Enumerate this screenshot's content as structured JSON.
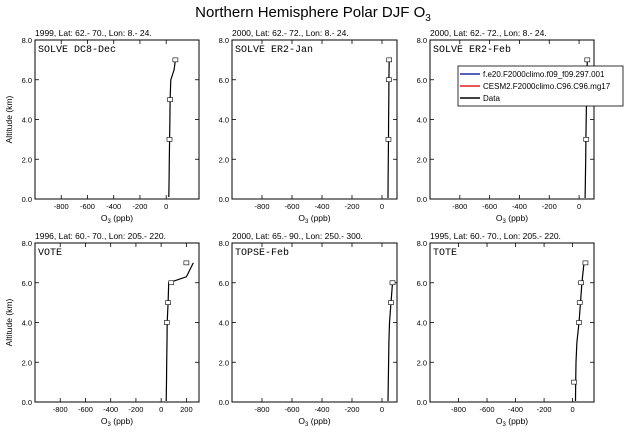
{
  "figure": {
    "title": "Northern Hemisphere Polar DJF O",
    "title_sub": "3"
  },
  "legend": {
    "placement": "top-right of third panel",
    "entries": [
      {
        "label": "f.e20.F2000climo.f09_f09.297.001",
        "color": "#1f2fa0"
      },
      {
        "label": "CESM2.F2000climo.C96.C96.mg17",
        "color": "#e02020"
      },
      {
        "label": "Data",
        "color": "#000000"
      }
    ]
  },
  "chart_data": [
    {
      "type": "line",
      "header": "1999, Lat: 62.- 70., Lon: 8.- 24.",
      "campaign": "SOLVE DC8-Dec",
      "xlabel": "O3 (ppb)",
      "ylabel": "Altitude (km)",
      "xlim": [
        -1000,
        250
      ],
      "ylim": [
        0,
        8
      ],
      "xticks": [
        -800,
        -600,
        -400,
        -200,
        0
      ],
      "yticks": [
        0.0,
        2.0,
        4.0,
        6.0,
        8.0
      ],
      "series": [
        {
          "name": "Data",
          "color": "#000000",
          "points": [
            [
              20,
              0.1
            ],
            [
              22,
              1.0
            ],
            [
              24,
              2.0
            ],
            [
              26,
              3.0
            ],
            [
              28,
              4.0
            ],
            [
              30,
              5.0
            ],
            [
              35,
              6.0
            ],
            [
              60,
              6.5
            ],
            [
              70,
              7.0
            ]
          ]
        }
      ],
      "boxes": [
        [
          25,
          3.0
        ],
        [
          30,
          5.0
        ],
        [
          70,
          7.0
        ]
      ]
    },
    {
      "type": "line",
      "header": "2000, Lat: 62.- 72., Lon: 8.- 24.",
      "campaign": "SOLVE ER2-Jan",
      "xlabel": "O3 (ppb)",
      "ylabel": "",
      "xlim": [
        -1000,
        100
      ],
      "ylim": [
        0,
        8
      ],
      "xticks": [
        -800,
        -600,
        -400,
        -200,
        0
      ],
      "yticks": [
        0.0,
        2.0,
        4.0,
        6.0,
        8.0
      ],
      "series": [
        {
          "name": "Data",
          "color": "#000000",
          "points": [
            [
              40,
              0.05
            ],
            [
              41,
              1.0
            ],
            [
              42,
              2.0
            ],
            [
              43,
              3.0
            ],
            [
              44,
              4.0
            ],
            [
              45,
              5.0
            ],
            [
              46,
              6.0
            ],
            [
              48,
              7.0
            ]
          ]
        }
      ],
      "boxes": [
        [
          43,
          3.0
        ],
        [
          46,
          6.0
        ],
        [
          48,
          7.0
        ]
      ]
    },
    {
      "type": "line",
      "header": "2000, Lat: 62.- 72., Lon: 8.- 24.",
      "campaign": "SOLVE ER2-Feb",
      "xlabel": "O3 (ppb)",
      "ylabel": "",
      "xlim": [
        -1000,
        100
      ],
      "ylim": [
        0,
        8
      ],
      "xticks": [
        -800,
        -600,
        -400,
        -200,
        0
      ],
      "yticks": [
        0.0,
        2.0,
        4.0,
        6.0,
        8.0
      ],
      "series": [
        {
          "name": "Data",
          "color": "#000000",
          "points": [
            [
              40,
              0.05
            ],
            [
              42,
              1.0
            ],
            [
              44,
              2.0
            ],
            [
              46,
              3.0
            ],
            [
              48,
              4.0
            ],
            [
              50,
              5.0
            ],
            [
              52,
              6.0
            ],
            [
              55,
              7.0
            ]
          ]
        }
      ],
      "boxes": [
        [
          48,
          3.0
        ],
        [
          52,
          6.0
        ],
        [
          55,
          7.0
        ]
      ]
    },
    {
      "type": "line",
      "header": "1996, Lat: 60.- 70., Lon: 205.- 220.",
      "campaign": "VOTE",
      "xlabel": "O3 (ppb)",
      "ylabel": "Altitude (km)",
      "xlim": [
        -1000,
        300
      ],
      "ylim": [
        0,
        8
      ],
      "xticks": [
        -800,
        -600,
        -400,
        -200,
        0,
        200
      ],
      "yticks": [
        0.0,
        2.0,
        4.0,
        6.0,
        8.0
      ],
      "series": [
        {
          "name": "Data",
          "color": "#000000",
          "points": [
            [
              40,
              0.05
            ],
            [
              42,
              1.0
            ],
            [
              44,
              2.0
            ],
            [
              46,
              3.0
            ],
            [
              48,
              4.0
            ],
            [
              55,
              5.0
            ],
            [
              60,
              6.0
            ],
            [
              200,
              6.3
            ],
            [
              255,
              7.0
            ]
          ]
        }
      ],
      "boxes": [
        [
          45,
          4.0
        ],
        [
          55,
          5.0
        ],
        [
          80,
          6.0
        ],
        [
          200,
          7.0
        ]
      ]
    },
    {
      "type": "line",
      "header": "2000, Lat: 65.- 90., Lon: 250.- 300.",
      "campaign": "TOPSE-Feb",
      "xlabel": "O3 (ppb)",
      "ylabel": "",
      "xlim": [
        -1000,
        100
      ],
      "ylim": [
        0,
        8
      ],
      "xticks": [
        -800,
        -600,
        -400,
        -200,
        0
      ],
      "yticks": [
        0.0,
        2.0,
        4.0,
        6.0,
        8.0
      ],
      "series": [
        {
          "name": "Data",
          "color": "#000000",
          "points": [
            [
              40,
              0.05
            ],
            [
              42,
              1.0
            ],
            [
              44,
              2.0
            ],
            [
              46,
              3.0
            ],
            [
              50,
              4.0
            ],
            [
              60,
              5.0
            ],
            [
              70,
              6.0
            ]
          ]
        }
      ],
      "boxes": [
        [
          60,
          5.0
        ],
        [
          70,
          6.0
        ]
      ]
    },
    {
      "type": "line",
      "header": "1995, Lat: 60.- 70., Lon: 205.- 220.",
      "campaign": "TOTE",
      "xlabel": "O3 (ppb)",
      "ylabel": "",
      "xlim": [
        -1000,
        150
      ],
      "ylim": [
        0,
        8
      ],
      "xticks": [
        -800,
        -600,
        -400,
        -200,
        0
      ],
      "yticks": [
        0.0,
        2.0,
        4.0,
        6.0,
        8.0
      ],
      "series": [
        {
          "name": "Data",
          "color": "#000000",
          "points": [
            [
              20,
              0.05
            ],
            [
              22,
              1.0
            ],
            [
              24,
              2.0
            ],
            [
              30,
              3.0
            ],
            [
              45,
              4.0
            ],
            [
              55,
              5.0
            ],
            [
              65,
              6.0
            ],
            [
              80,
              7.0
            ]
          ]
        }
      ],
      "boxes": [
        [
          10,
          1.0
        ],
        [
          45,
          4.0
        ],
        [
          50,
          5.0
        ],
        [
          60,
          6.0
        ],
        [
          90,
          7.0
        ]
      ]
    }
  ]
}
